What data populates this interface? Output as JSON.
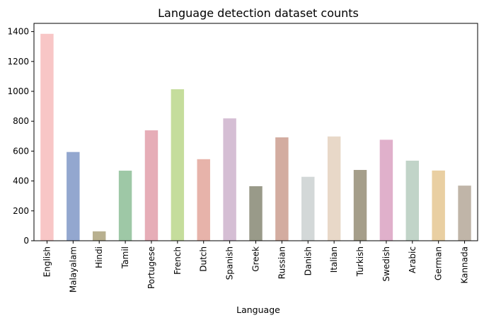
{
  "chart_data": {
    "type": "bar",
    "title": "Language detection dataset counts",
    "xlabel": "Language",
    "ylabel": "",
    "ylim": [
      0,
      1455
    ],
    "yticks": [
      0,
      200,
      400,
      600,
      800,
      1000,
      1200,
      1400
    ],
    "grid": false,
    "legend": "none",
    "categories": [
      "English",
      "Malayalam",
      "Hindi",
      "Tamil",
      "Portugese",
      "French",
      "Dutch",
      "Spanish",
      "Greek",
      "Russian",
      "Danish",
      "Italian",
      "Turkish",
      "Swedish",
      "Arabic",
      "German",
      "Kannada"
    ],
    "values": [
      1385,
      594,
      63,
      469,
      739,
      1014,
      546,
      819,
      365,
      692,
      428,
      698,
      474,
      676,
      536,
      470,
      369
    ],
    "colors": [
      "#f8c6c6",
      "#93a7cf",
      "#b8b08f",
      "#9ec8a6",
      "#e6adb7",
      "#c5dd9c",
      "#e7b3aa",
      "#d5bed4",
      "#999a89",
      "#d3aca0",
      "#d3d8d8",
      "#e8d8c8",
      "#a59e8a",
      "#e0b0cb",
      "#c1d4c8",
      "#e9cfa2",
      "#c0b5a8"
    ]
  }
}
